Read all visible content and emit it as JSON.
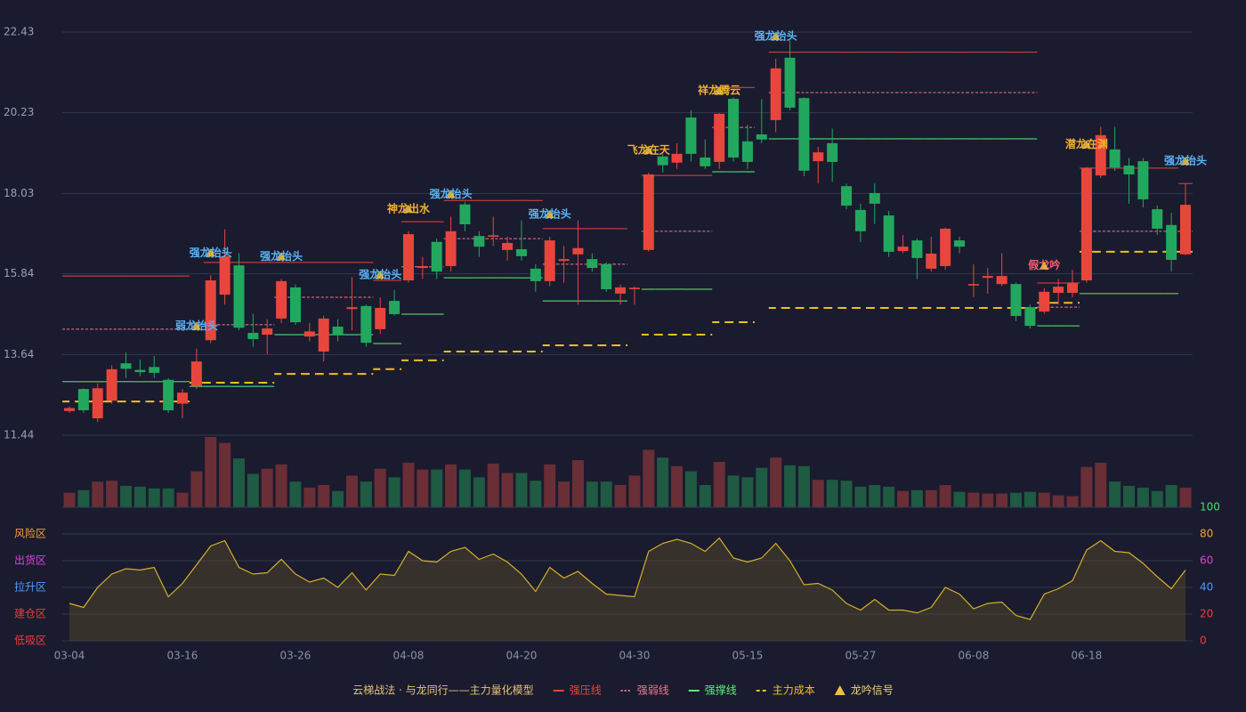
{
  "chart_data": [
    {
      "type": "candlestick",
      "title": "云梯战法 · 与龙同行——主力量化模型",
      "categories": [
        "03-04",
        null,
        null,
        null,
        null,
        null,
        null,
        null,
        "03-16",
        null,
        null,
        null,
        null,
        null,
        null,
        null,
        "03-26",
        null,
        null,
        null,
        null,
        null,
        null,
        null,
        "04-08",
        null,
        null,
        null,
        null,
        null,
        null,
        null,
        "04-20",
        null,
        null,
        null,
        null,
        null,
        null,
        null,
        "04-30",
        null,
        null,
        null,
        null,
        null,
        null,
        null,
        "05-15",
        null,
        null,
        null,
        null,
        null,
        null,
        null,
        "05-27",
        null,
        null,
        null,
        null,
        null,
        null,
        null,
        "06-08",
        null,
        null,
        null,
        null,
        null,
        null,
        null,
        "06-18",
        null,
        null,
        null,
        null,
        null,
        null,
        null
      ],
      "open": [
        12.1,
        12.7,
        11.9,
        12.38,
        13.4,
        13.22,
        13.3,
        12.95,
        12.3,
        12.78,
        14.03,
        15.27,
        16.07,
        14.23,
        14.18,
        14.62,
        15.47,
        14.13,
        13.72,
        14.4,
        14.88,
        14.96,
        14.33,
        15.1,
        15.66,
        16.0,
        16.71,
        16.05,
        17.73,
        16.87,
        16.85,
        16.49,
        16.51,
        15.98,
        15.64,
        16.19,
        16.37,
        16.24,
        16.1,
        15.3,
        15.42,
        16.49,
        19.04,
        18.87,
        20.1,
        19.01,
        18.89,
        20.61,
        19.45,
        19.64,
        20.03,
        21.73,
        20.63,
        18.91,
        19.4,
        18.23,
        17.58,
        18.04,
        17.43,
        16.46,
        16.75,
        15.98,
        16.05,
        16.75,
        15.52,
        15.73,
        15.56,
        15.56,
        14.93,
        14.81,
        15.32,
        15.32,
        15.66,
        18.52,
        19.23,
        18.79,
        18.91,
        17.6,
        17.17,
        16.37
      ],
      "high": [
        12.22,
        12.72,
        12.85,
        13.35,
        13.7,
        13.5,
        13.6,
        13.0,
        12.7,
        13.8,
        15.8,
        17.05,
        16.4,
        14.75,
        14.6,
        15.7,
        15.55,
        14.5,
        14.7,
        14.6,
        15.75,
        15.0,
        15.2,
        15.4,
        17.0,
        16.3,
        16.8,
        17.4,
        17.8,
        17.0,
        17.4,
        16.85,
        17.3,
        16.1,
        16.85,
        16.6,
        17.3,
        16.4,
        16.15,
        15.55,
        15.5,
        18.6,
        19.1,
        19.4,
        20.3,
        19.5,
        20.22,
        20.65,
        19.9,
        20.6,
        21.7,
        22.2,
        20.65,
        19.3,
        19.8,
        18.3,
        17.75,
        18.3,
        17.55,
        16.9,
        16.8,
        16.85,
        17.1,
        16.85,
        16.1,
        16.0,
        16.4,
        15.6,
        15.0,
        15.45,
        15.7,
        15.95,
        18.75,
        19.85,
        19.85,
        19.0,
        19.0,
        17.7,
        17.5,
        18.3
      ],
      "low": [
        12.05,
        12.05,
        11.8,
        12.3,
        13.0,
        13.05,
        13.0,
        12.05,
        11.9,
        12.7,
        13.95,
        15.0,
        14.3,
        13.85,
        13.65,
        14.5,
        14.45,
        14.0,
        13.45,
        14.0,
        14.3,
        13.85,
        14.2,
        14.7,
        15.6,
        15.7,
        15.7,
        15.9,
        17.0,
        16.3,
        16.6,
        16.2,
        16.2,
        15.35,
        15.5,
        15.6,
        15.0,
        15.9,
        15.35,
        15.0,
        15.0,
        16.45,
        18.6,
        18.7,
        18.9,
        18.7,
        18.7,
        18.9,
        18.7,
        19.4,
        19.7,
        20.3,
        18.5,
        18.3,
        18.35,
        17.6,
        16.7,
        17.2,
        16.3,
        16.4,
        15.7,
        15.9,
        15.95,
        16.4,
        15.2,
        15.3,
        15.5,
        14.55,
        14.35,
        14.75,
        15.0,
        15.2,
        15.6,
        18.45,
        18.65,
        17.75,
        17.65,
        16.9,
        15.9,
        16.35
      ],
      "close": [
        12.18,
        12.12,
        12.72,
        13.24,
        13.25,
        13.16,
        13.14,
        12.12,
        12.6,
        13.45,
        15.66,
        16.32,
        14.37,
        14.06,
        14.35,
        15.64,
        14.52,
        14.27,
        14.62,
        14.16,
        14.93,
        13.96,
        14.91,
        14.74,
        16.92,
        16.05,
        15.9,
        17.0,
        17.19,
        16.58,
        16.89,
        16.68,
        16.32,
        15.64,
        16.75,
        16.24,
        16.54,
        16.0,
        15.42,
        15.47,
        15.46,
        18.55,
        18.8,
        19.11,
        19.11,
        18.77,
        20.2,
        19.01,
        18.89,
        19.5,
        21.44,
        20.37,
        18.65,
        19.15,
        18.89,
        17.7,
        17.0,
        17.75,
        16.44,
        16.58,
        16.27,
        16.39,
        17.07,
        16.58,
        15.56,
        15.78,
        15.78,
        14.69,
        14.42,
        15.35,
        15.49,
        15.59,
        18.72,
        19.62,
        18.74,
        18.55,
        17.87,
        17.07,
        16.22,
        17.72
      ],
      "up_color": "#e8463c",
      "down_color": "#22a85e",
      "ylim": [
        11.44,
        22.43
      ],
      "yticks": [
        11.44,
        13.64,
        15.84,
        18.03,
        20.23,
        22.43
      ],
      "grid": true,
      "series": [
        {
          "name": "强压线",
          "color": "#e8463c",
          "style": "solid",
          "values": [
            15.78,
            15.78,
            15.78,
            15.78,
            15.78,
            15.78,
            15.78,
            15.78,
            15.78,
            null,
            16.15,
            16.15,
            16.15,
            16.15,
            16.15,
            16.15,
            16.15,
            16.15,
            16.15,
            16.15,
            16.15,
            16.15,
            15.66,
            15.66,
            17.26,
            17.26,
            17.26,
            17.84,
            17.84,
            17.84,
            17.84,
            17.84,
            17.84,
            17.84,
            17.07,
            17.07,
            17.07,
            17.07,
            17.07,
            17.07,
            null,
            18.52,
            18.52,
            18.52,
            18.52,
            18.52,
            20.92,
            20.92,
            20.92,
            null,
            21.88,
            21.88,
            21.88,
            21.88,
            21.88,
            21.88,
            21.88,
            21.88,
            21.88,
            21.88,
            21.88,
            21.88,
            21.88,
            21.88,
            21.88,
            21.88,
            21.88,
            21.88,
            21.88,
            15.59,
            15.59,
            15.59,
            18.72,
            18.72,
            18.72,
            18.72,
            18.72,
            18.72,
            18.72,
            18.3
          ]
        },
        {
          "name": "强弱线",
          "color": "#f07890",
          "style": "dotted",
          "values": [
            14.33,
            14.33,
            14.33,
            14.33,
            14.33,
            14.33,
            14.33,
            14.33,
            14.33,
            14.45,
            14.45,
            14.45,
            14.45,
            14.45,
            14.45,
            15.2,
            15.2,
            15.2,
            15.2,
            15.2,
            15.2,
            15.2,
            null,
            null,
            16.03,
            16.03,
            16.03,
            16.8,
            16.8,
            16.8,
            16.8,
            16.8,
            16.8,
            16.8,
            16.1,
            16.1,
            16.1,
            16.1,
            16.1,
            16.1,
            null,
            17.0,
            17.0,
            17.0,
            17.0,
            17.0,
            19.83,
            19.83,
            19.83,
            null,
            20.78,
            20.78,
            20.78,
            20.78,
            20.78,
            20.78,
            20.78,
            20.78,
            20.78,
            20.78,
            20.78,
            20.78,
            20.78,
            20.78,
            20.78,
            20.78,
            20.78,
            20.78,
            20.78,
            14.93,
            14.93,
            14.93,
            17.0,
            17.0,
            17.0,
            17.0,
            17.0,
            17.0,
            17.0,
            17.0
          ]
        },
        {
          "name": "强撑线",
          "color": "#5cf07a",
          "style": "solid",
          "values": [
            12.9,
            12.9,
            12.9,
            12.9,
            12.9,
            12.9,
            12.9,
            12.9,
            12.9,
            12.77,
            12.77,
            12.77,
            12.77,
            12.77,
            12.77,
            14.18,
            14.18,
            14.18,
            14.18,
            14.18,
            14.18,
            14.18,
            13.94,
            13.94,
            14.74,
            14.74,
            14.74,
            15.73,
            15.73,
            15.73,
            15.73,
            15.73,
            15.73,
            15.73,
            15.1,
            15.1,
            15.1,
            15.1,
            15.1,
            15.1,
            null,
            15.42,
            15.42,
            15.42,
            15.42,
            15.42,
            18.62,
            18.62,
            18.62,
            null,
            19.52,
            19.52,
            19.52,
            19.52,
            19.52,
            19.52,
            19.52,
            19.52,
            19.52,
            19.52,
            19.52,
            19.52,
            19.52,
            19.52,
            19.52,
            19.52,
            19.52,
            19.52,
            19.52,
            14.42,
            14.42,
            14.42,
            15.3,
            15.3,
            15.3,
            15.3,
            15.3,
            15.3,
            15.3,
            null
          ]
        },
        {
          "name": "主力成本",
          "color": "#f0c020",
          "style": "dashed",
          "values": [
            12.36,
            12.36,
            12.36,
            12.36,
            12.36,
            12.36,
            12.36,
            12.36,
            12.36,
            12.87,
            12.87,
            12.87,
            12.87,
            12.87,
            12.87,
            13.11,
            13.11,
            13.11,
            13.11,
            13.11,
            13.11,
            13.11,
            13.24,
            13.24,
            13.48,
            13.48,
            13.48,
            13.72,
            13.72,
            13.72,
            13.72,
            13.72,
            13.72,
            13.72,
            13.89,
            13.89,
            13.89,
            13.89,
            13.89,
            13.89,
            null,
            14.18,
            14.18,
            14.18,
            14.18,
            14.18,
            14.52,
            14.52,
            14.52,
            null,
            14.91,
            14.91,
            14.91,
            14.91,
            14.91,
            14.91,
            14.91,
            14.91,
            14.91,
            14.91,
            14.91,
            14.91,
            14.91,
            14.91,
            14.91,
            14.91,
            14.91,
            14.91,
            14.91,
            15.05,
            15.05,
            15.05,
            16.44,
            16.44,
            16.44,
            16.44,
            16.44,
            16.44,
            16.44,
            16.44
          ]
        }
      ],
      "signals": {
        "name": "龙吟信号",
        "color": "#f0c040",
        "labels": [
          null,
          null,
          null,
          null,
          null,
          null,
          null,
          null,
          null,
          "弱龙抬头",
          "强龙抬头",
          null,
          null,
          null,
          null,
          "强龙抬头",
          null,
          null,
          null,
          null,
          null,
          null,
          "强龙抬头",
          null,
          "神龙出水",
          null,
          null,
          "强龙抬头",
          null,
          null,
          null,
          null,
          null,
          null,
          "强龙抬头",
          null,
          null,
          null,
          null,
          null,
          null,
          "飞龙在天",
          null,
          null,
          null,
          null,
          "祥龙腾云",
          null,
          null,
          null,
          "强龙抬头",
          null,
          null,
          null,
          null,
          null,
          null,
          null,
          null,
          null,
          null,
          null,
          null,
          null,
          null,
          null,
          null,
          null,
          null,
          "假龙吟",
          null,
          null,
          "潜龙在渊",
          null,
          null,
          null,
          null,
          null,
          null,
          "强龙抬头"
        ],
        "label_colors": {
          "弱龙抬头": "#5ab4f5",
          "强龙抬头": "#5ab4f5",
          "神龙出水": "#f0b030",
          "飞龙在天": "#f0b030",
          "祥龙腾云": "#f0b030",
          "潜龙在渊": "#f0b030",
          "假龙吟": "#f06070"
        }
      }
    },
    {
      "type": "bar",
      "up_color": "#6a2e36",
      "down_color": "#1f5a42",
      "values": [
        17,
        20,
        30,
        31,
        25,
        24,
        22,
        22,
        17,
        42,
        82,
        75,
        57,
        39,
        45,
        50,
        30,
        23,
        26,
        19,
        37,
        30,
        45,
        35,
        52,
        44,
        44,
        50,
        44,
        35,
        51,
        40,
        40,
        31,
        50,
        30,
        55,
        30,
        30,
        26,
        37,
        67,
        58,
        48,
        42,
        26,
        53,
        37,
        35,
        46,
        58,
        49,
        48,
        32,
        32,
        31,
        24,
        26,
        24,
        19,
        20,
        20,
        26,
        18,
        17,
        16,
        16,
        17,
        18,
        17,
        14,
        13,
        47,
        52,
        30,
        25,
        23,
        19,
        26,
        23
      ]
    },
    {
      "type": "area",
      "color": "#d4b028",
      "values": [
        28,
        25,
        40,
        50,
        54,
        53,
        55,
        33,
        43,
        57,
        71,
        75,
        55,
        50,
        51,
        61,
        50,
        44,
        47,
        40,
        51,
        38,
        50,
        49,
        67,
        60,
        59,
        67,
        70,
        61,
        65,
        59,
        50,
        37,
        55,
        47,
        52,
        43,
        35,
        34,
        33,
        67,
        73,
        76,
        73,
        67,
        77,
        62,
        59,
        62,
        73,
        60,
        42,
        43,
        38,
        28,
        23,
        31,
        23,
        23,
        21,
        25,
        40,
        35,
        24,
        28,
        29,
        19,
        16,
        35,
        39,
        45,
        68,
        75,
        67,
        66,
        58,
        48,
        39,
        53
      ],
      "ylim": [
        0,
        100
      ],
      "yticks": [
        0,
        20,
        40,
        60,
        80,
        100
      ],
      "grid": true,
      "ytick_colors": [
        "#f03c3c",
        "#f03c3c",
        "#4a9cff",
        "#e040e0",
        "#f0a030",
        "#3ce070"
      ],
      "zone_labels": [
        "低吸区",
        "建仓区",
        "拉升区",
        "出货区",
        "风险区",
        null
      ]
    }
  ]
}
